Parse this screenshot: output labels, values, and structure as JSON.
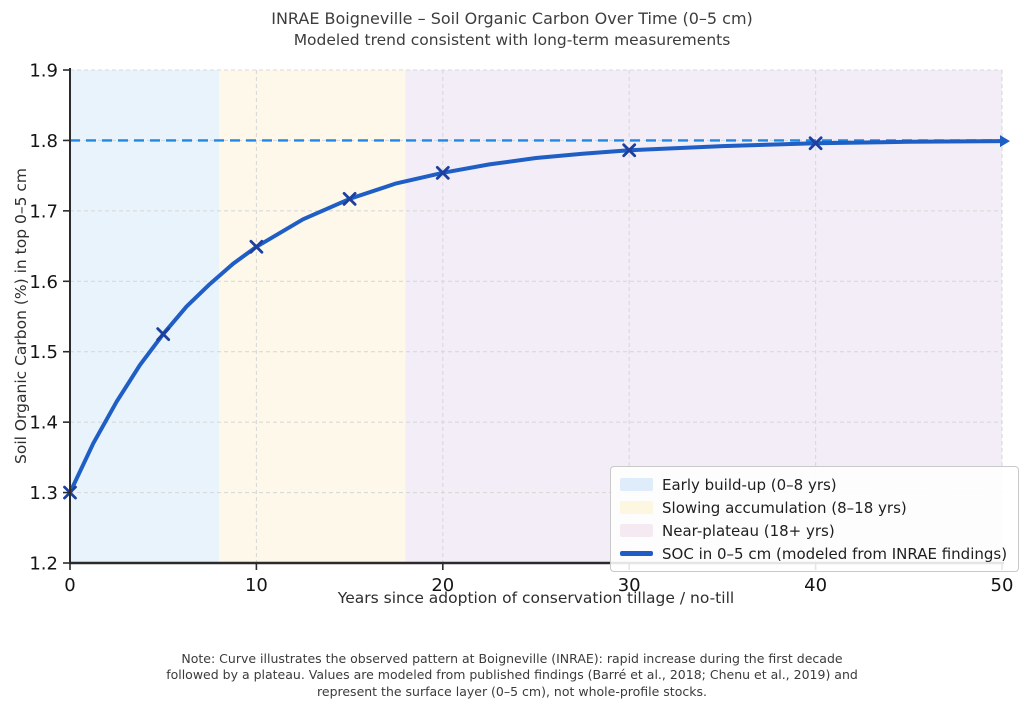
{
  "note": {
    "line1": "Note: Curve illustrates the observed pattern at Boigneville (INRAE): rapid increase during the first decade",
    "line2": "followed by a plateau. Values are modeled from published findings (Barré et al., 2018; Chenu et al., 2019) and",
    "line3": "represent the surface layer (0–5 cm), not whole-profile stocks."
  },
  "chart_data": {
    "type": "line",
    "title": "INRAE Boigneville – Soil Organic Carbon Over Time (0–5 cm)",
    "subtitle": "Modeled trend consistent with long-term measurements",
    "xlabel": "Years since adoption of conservation tillage / no-till",
    "ylabel": "Soil Organic Carbon (%) in top 0–5 cm",
    "xlim": [
      0,
      50
    ],
    "ylim": [
      1.2,
      1.9
    ],
    "x_ticks": [
      0,
      10,
      20,
      30,
      40,
      50
    ],
    "y_ticks": [
      1.2,
      1.3,
      1.4,
      1.5,
      1.6,
      1.7,
      1.8,
      1.9
    ],
    "grid": "dashed",
    "target_line": {
      "y": 1.8,
      "style": "dashed",
      "color": "#1e88e5"
    },
    "bands": [
      {
        "label": "Early build-up (0–8 yrs)",
        "x_start": 0,
        "x_end": 8,
        "color": "#e9f3fb"
      },
      {
        "label": "Slowing accumulation (8–18 yrs)",
        "x_start": 8,
        "x_end": 18,
        "color": "#fdf8e9"
      },
      {
        "label": "Near-plateau (18+ yrs)",
        "x_start": 18,
        "x_end": 50,
        "color": "#f2edf7"
      }
    ],
    "series": [
      {
        "name": "SOC in 0–5 cm (modeled from INRAE findings)",
        "color": "#1f5ec4",
        "marker": "x",
        "marker_color": "#1d3f9e",
        "points_x": [
          0,
          5,
          10,
          15,
          20,
          30,
          40
        ],
        "points_y": [
          1.3,
          1.525,
          1.649,
          1.717,
          1.754,
          1.786,
          1.796
        ],
        "curve_x": [
          0,
          1.25,
          2.5,
          3.75,
          5,
          6.25,
          7.5,
          8.75,
          10,
          12.5,
          15,
          17.5,
          20,
          22.5,
          25,
          27.5,
          30,
          35,
          40,
          45,
          50
        ],
        "curve_y": [
          1.3,
          1.37,
          1.429,
          1.481,
          1.525,
          1.564,
          1.596,
          1.625,
          1.649,
          1.688,
          1.717,
          1.739,
          1.754,
          1.766,
          1.775,
          1.781,
          1.786,
          1.792,
          1.796,
          1.798,
          1.799
        ]
      }
    ],
    "end_arrow": {
      "x": 50,
      "y": 1.799
    },
    "legend": {
      "position": "lower right",
      "entries": [
        {
          "label": "Early build-up (0–8 yrs)",
          "swatch": "patch",
          "color": "#deedf9"
        },
        {
          "label": "Slowing accumulation (8–18 yrs)",
          "swatch": "patch",
          "color": "#fdf6e1"
        },
        {
          "label": "Near-plateau (18+ yrs)",
          "swatch": "patch",
          "color": "#f5e9f2"
        },
        {
          "label": "SOC in 0–5 cm (modeled from INRAE findings)",
          "swatch": "line",
          "color": "#1f5ec4"
        }
      ]
    }
  }
}
